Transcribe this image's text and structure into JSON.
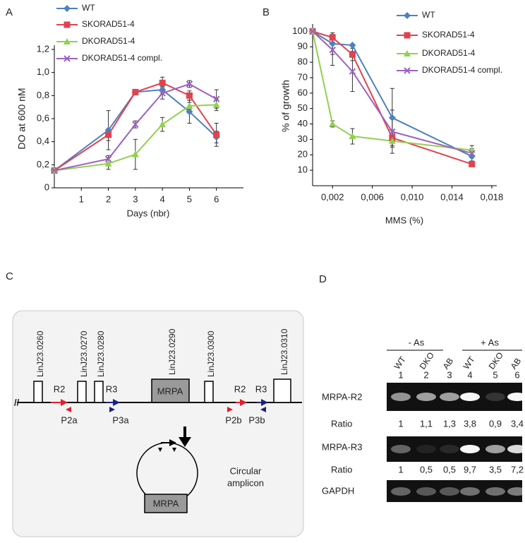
{
  "panels": [
    "A",
    "B",
    "C",
    "D"
  ],
  "chart_data": [
    {
      "type": "line",
      "xlabel": "Days (nbr)",
      "ylabel": "DO at 600 nM",
      "x": [
        0,
        2,
        3,
        4,
        5,
        6
      ],
      "xlim": [
        0,
        7
      ],
      "xticks": [
        1,
        2,
        3,
        4,
        5,
        6
      ],
      "ylim": [
        0,
        1.2
      ],
      "yticks": [
        0,
        {
          "value": 0.2,
          "label": "0,2"
        },
        {
          "value": 0.4,
          "label": "0,4"
        },
        {
          "value": 0.6,
          "label": "0,6"
        },
        {
          "value": 0.8,
          "label": "0,8"
        },
        {
          "value": 1.0,
          "label": "1,0"
        },
        {
          "value": 1.2,
          "label": "1,2"
        }
      ],
      "grid": false,
      "series": [
        {
          "name": "WT",
          "color": "#4f81bd",
          "marker": "diamond",
          "values": [
            0.15,
            0.5,
            0.83,
            0.85,
            0.66,
            0.44
          ],
          "errors": [
            0,
            0.17,
            0.02,
            0.03,
            0.1,
            0.05
          ]
        },
        {
          "name": "SKORAD51-4",
          "color": "#e0434f",
          "marker": "square",
          "values": [
            0.15,
            0.46,
            0.83,
            0.91,
            0.8,
            0.46
          ],
          "errors": [
            0,
            0.05,
            0.02,
            0.05,
            0.04,
            0.1
          ]
        },
        {
          "name": "DKORAD51-4",
          "color": "#92d050",
          "marker": "triangle",
          "values": [
            0.15,
            0.21,
            0.29,
            0.55,
            0.71,
            0.72
          ],
          "errors": [
            0,
            0.05,
            0.13,
            0.06,
            0.03,
            0.05
          ]
        },
        {
          "name": "DKORAD51-4 compl.",
          "color": "#9e62c0",
          "marker": "x",
          "values": [
            0.15,
            0.25,
            0.55,
            0.82,
            0.9,
            0.77
          ],
          "errors": [
            0,
            0.03,
            0.03,
            0.05,
            0.03,
            0.08
          ]
        }
      ]
    },
    {
      "type": "line",
      "xlabel": "MMS (%)",
      "ylabel": "% of growth",
      "x": [
        0,
        0.002,
        0.004,
        0.008,
        0.016
      ],
      "xlim": [
        0,
        0.0185
      ],
      "xticks": [
        {
          "value": 0.002,
          "label": "0,002"
        },
        {
          "value": 0.006,
          "label": "0,006"
        },
        {
          "value": 0.01,
          "label": "0,010"
        },
        {
          "value": 0.014,
          "label": "0,014"
        },
        {
          "value": 0.018,
          "label": "0,018"
        }
      ],
      "ylim": [
        0,
        102
      ],
      "yticks": [
        10,
        20,
        30,
        40,
        50,
        60,
        70,
        80,
        90,
        100
      ],
      "grid": false,
      "series": [
        {
          "name": "WT",
          "color": "#4f81bd",
          "marker": "diamond",
          "values": [
            100,
            92,
            91,
            44,
            19
          ],
          "errors": [
            0,
            7,
            0,
            19,
            3
          ]
        },
        {
          "name": "SKORAD51-4",
          "color": "#e0434f",
          "marker": "square",
          "values": [
            100,
            96,
            85,
            31,
            14
          ],
          "errors": [
            0,
            3,
            4,
            2,
            1
          ]
        },
        {
          "name": "DKORAD51-4",
          "color": "#92d050",
          "marker": "triangle",
          "values": [
            100,
            40,
            32,
            29,
            23
          ],
          "errors": [
            0,
            2,
            5,
            3,
            3
          ]
        },
        {
          "name": "DKORAD51-4 compl.",
          "color": "#9e62c0",
          "marker": "x",
          "values": [
            100,
            88,
            74,
            35,
            21
          ],
          "errors": [
            0,
            10,
            13,
            14,
            3
          ]
        }
      ]
    }
  ],
  "diagram": {
    "break": "//",
    "genes": [
      "LinJ23.0260",
      "LinJ23.0270",
      "LinJ23.0280",
      "LinJ23.0290",
      "LinJ23.0300",
      "LinJ23.0310"
    ],
    "gene_box_label": "MRPA",
    "repeats": [
      "R2",
      "R3",
      "R2",
      "R3"
    ],
    "primers": [
      "P2a",
      "P3a",
      "P2b",
      "P3b"
    ],
    "circle_gene": "MRPA",
    "circle_label": [
      "Circular",
      "amplicon"
    ]
  },
  "gel": {
    "groups": [
      "- As",
      "+ As"
    ],
    "lanes": [
      "WT",
      "DKO",
      "AB",
      "WT",
      "DKO",
      "AB"
    ],
    "lane_numbers": [
      1,
      2,
      3,
      4,
      5,
      6
    ],
    "rows": [
      {
        "label": "MRPA-R2",
        "ratio_label": "Ratio",
        "ratios": [
          "1",
          "1,1",
          "1,3",
          "3,8",
          "0,9",
          "3,4"
        ]
      },
      {
        "label": "MRPA-R3",
        "ratio_label": "Ratio",
        "ratios": [
          "1",
          "0,5",
          "0,5",
          "9,7",
          "3,5",
          "7,2"
        ]
      },
      {
        "label": "GAPDH"
      }
    ]
  }
}
